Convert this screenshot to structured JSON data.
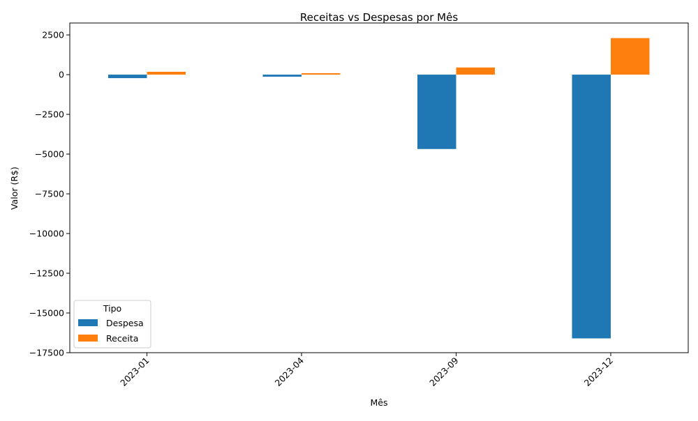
{
  "chart_data": {
    "type": "bar",
    "title": "Receitas vs Despesas por Mês",
    "xlabel": "Mês",
    "ylabel": "Valor (R$)",
    "categories": [
      "2023-01",
      "2023-04",
      "2023-09",
      "2023-12"
    ],
    "series": [
      {
        "name": "Despesa",
        "color": "#1f77b4",
        "values": [
          -220,
          -130,
          -4680,
          -16600
        ]
      },
      {
        "name": "Receita",
        "color": "#ff7f0e",
        "values": [
          180,
          90,
          450,
          2300
        ]
      }
    ],
    "ylim": [
      -17500,
      3250
    ],
    "yticks": [
      2500,
      0,
      -2500,
      -5000,
      -7500,
      -10000,
      -12500,
      -15000,
      -17500
    ],
    "ytick_labels": [
      "2500",
      "0",
      "−2500",
      "−5000",
      "−7500",
      "−10000",
      "−12500",
      "−15000",
      "−17500"
    ],
    "grid": false,
    "legend": {
      "title": "Tipo",
      "placement": "lower-left"
    }
  }
}
